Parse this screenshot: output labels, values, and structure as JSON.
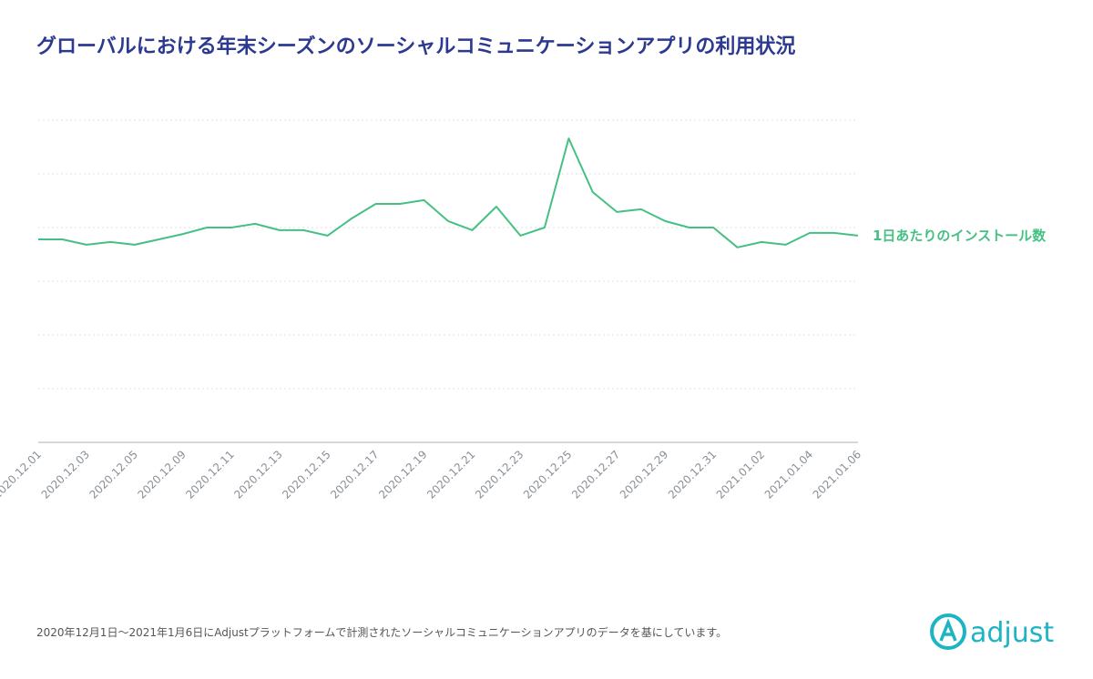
{
  "chart_data": {
    "type": "line",
    "title": "グローバルにおける年末シーズンのソーシャルコミュニケーションアプリの利用状況",
    "categories": [
      "2020.12.01",
      null,
      "2020.12.03",
      null,
      "2020.12.05",
      null,
      "2020.12.09",
      null,
      "2020.12.11",
      null,
      "2020.12.13",
      null,
      "2020.12.15",
      null,
      "2020.12.17",
      null,
      "2020.12.19",
      null,
      "2020.12.21",
      null,
      "2020.12.23",
      null,
      "2020.12.25",
      null,
      "2020.12.27",
      null,
      "2020.12.29",
      null,
      "2020.12.31",
      null,
      "2021.01.02",
      null,
      "2021.01.04",
      null,
      "2021.01.06"
    ],
    "series": [
      {
        "name": "1日あたりのインストール数",
        "color": "#45c083",
        "values": [
          3.78,
          3.78,
          3.68,
          3.73,
          3.68,
          3.78,
          3.88,
          4.0,
          4.0,
          4.07,
          3.95,
          3.95,
          3.85,
          4.17,
          4.44,
          4.44,
          4.51,
          4.12,
          3.95,
          4.39,
          3.85,
          4.0,
          5.66,
          4.66,
          4.29,
          4.34,
          4.12,
          4.0,
          4.0,
          3.63,
          3.73,
          3.68,
          3.9,
          3.9,
          3.85
        ]
      }
    ],
    "ylim": [
      0,
      6
    ],
    "yticks": [
      0,
      1,
      2,
      3,
      4,
      5,
      6
    ],
    "grid": true,
    "footnote": "2020年12月1日～2021年1月6日にAdjustプラットフォームで計測されたソーシャルコミュニケーションアプリのデータを基にしています。",
    "logo": "adjust"
  }
}
